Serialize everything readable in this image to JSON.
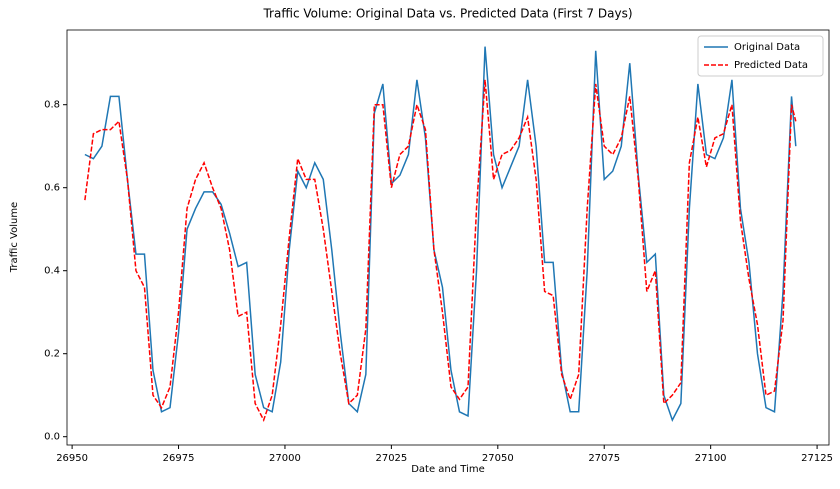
{
  "chart_data": {
    "type": "line",
    "title": "Traffic Volume: Original Data vs. Predicted Data (First 7 Days)",
    "xlabel": "Date and Time",
    "ylabel": "Traffic Volume",
    "x": [
      26953,
      26955,
      26957,
      26959,
      26961,
      26963,
      26965,
      26967,
      26969,
      26971,
      26973,
      26975,
      26977,
      26979,
      26981,
      26983,
      26985,
      26987,
      26989,
      26991,
      26993,
      26995,
      26997,
      26999,
      27001,
      27003,
      27005,
      27007,
      27009,
      27011,
      27013,
      27015,
      27017,
      27019,
      27021,
      27023,
      27025,
      27027,
      27029,
      27031,
      27033,
      27035,
      27037,
      27039,
      27041,
      27043,
      27045,
      27047,
      27049,
      27051,
      27053,
      27055,
      27057,
      27059,
      27061,
      27063,
      27065,
      27067,
      27069,
      27071,
      27073,
      27075,
      27077,
      27079,
      27081,
      27083,
      27085,
      27087,
      27089,
      27091,
      27093,
      27095,
      27097,
      27099,
      27101,
      27103,
      27105,
      27107,
      27109,
      27111,
      27113,
      27115,
      27117,
      27119,
      27120
    ],
    "series": [
      {
        "name": "Original Data",
        "color": "#1f77b4",
        "linestyle": "solid",
        "values": [
          0.68,
          0.67,
          0.7,
          0.82,
          0.82,
          0.62,
          0.44,
          0.44,
          0.16,
          0.06,
          0.07,
          0.25,
          0.5,
          0.55,
          0.59,
          0.59,
          0.56,
          0.49,
          0.41,
          0.42,
          0.15,
          0.07,
          0.06,
          0.18,
          0.45,
          0.64,
          0.6,
          0.66,
          0.62,
          0.45,
          0.25,
          0.08,
          0.06,
          0.15,
          0.78,
          0.85,
          0.61,
          0.63,
          0.68,
          0.86,
          0.72,
          0.45,
          0.36,
          0.16,
          0.06,
          0.05,
          0.4,
          0.94,
          0.68,
          0.6,
          0.65,
          0.7,
          0.86,
          0.7,
          0.42,
          0.42,
          0.16,
          0.06,
          0.06,
          0.4,
          0.93,
          0.62,
          0.64,
          0.7,
          0.9,
          0.63,
          0.42,
          0.44,
          0.1,
          0.04,
          0.08,
          0.55,
          0.85,
          0.68,
          0.67,
          0.72,
          0.86,
          0.55,
          0.42,
          0.2,
          0.07,
          0.06,
          0.35,
          0.82,
          0.7
        ]
      },
      {
        "name": "Predicted Data",
        "color": "#ff0000",
        "linestyle": "dashed",
        "values": [
          0.57,
          0.73,
          0.74,
          0.74,
          0.76,
          0.62,
          0.4,
          0.36,
          0.1,
          0.07,
          0.12,
          0.3,
          0.55,
          0.62,
          0.66,
          0.6,
          0.55,
          0.45,
          0.29,
          0.3,
          0.08,
          0.04,
          0.1,
          0.27,
          0.48,
          0.67,
          0.62,
          0.62,
          0.5,
          0.35,
          0.2,
          0.08,
          0.1,
          0.26,
          0.8,
          0.8,
          0.6,
          0.68,
          0.7,
          0.8,
          0.74,
          0.45,
          0.3,
          0.12,
          0.09,
          0.12,
          0.55,
          0.86,
          0.62,
          0.68,
          0.69,
          0.72,
          0.77,
          0.62,
          0.35,
          0.34,
          0.15,
          0.09,
          0.15,
          0.55,
          0.85,
          0.7,
          0.68,
          0.72,
          0.82,
          0.62,
          0.35,
          0.4,
          0.08,
          0.1,
          0.13,
          0.66,
          0.77,
          0.65,
          0.72,
          0.73,
          0.8,
          0.52,
          0.38,
          0.27,
          0.1,
          0.11,
          0.28,
          0.8,
          0.76
        ]
      }
    ],
    "xlim": [
      26948.8,
      27127.8
    ],
    "ylim": [
      -0.02,
      0.98
    ],
    "xticks": [
      26950,
      26975,
      27000,
      27025,
      27050,
      27075,
      27100,
      27125
    ],
    "yticks": [
      {
        "value": 0,
        "label": "0.0"
      },
      0.2,
      0.4,
      0.6,
      0.8
    ],
    "legend": "upper right"
  }
}
